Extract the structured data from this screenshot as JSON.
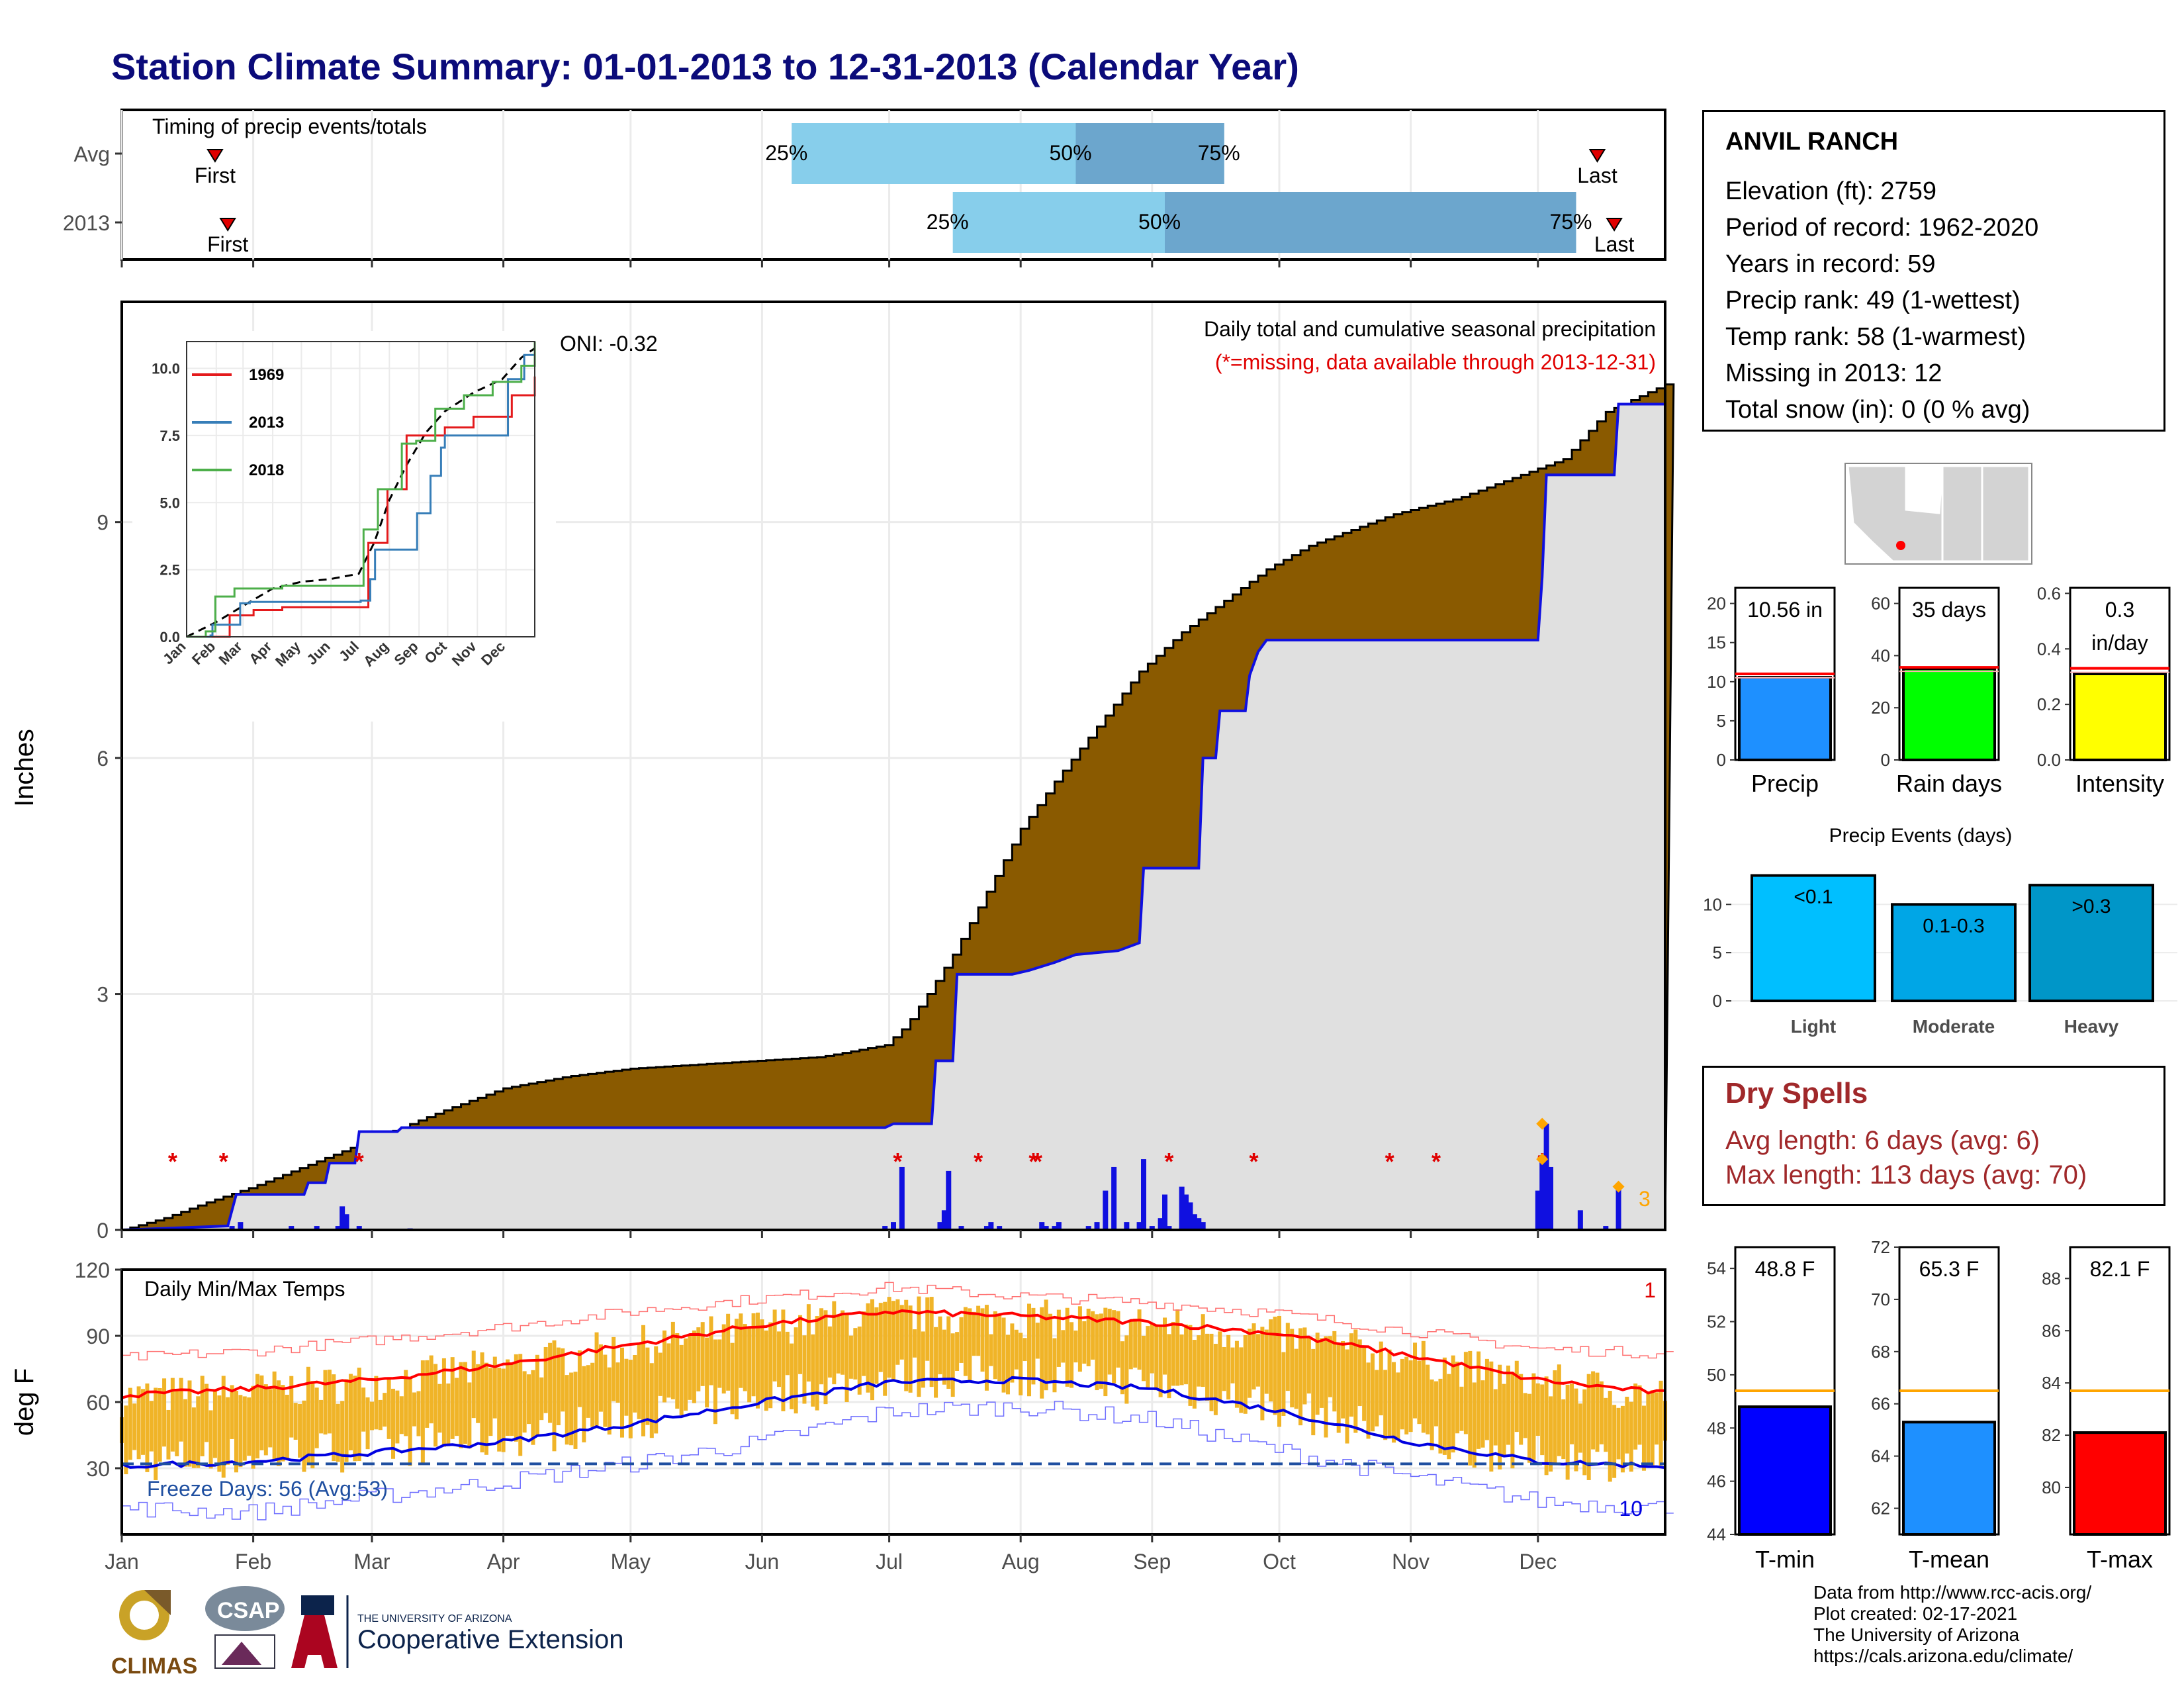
{
  "title": "Station Climate Summary: 01-01-2013 to 12-31-2013 (Calendar Year)",
  "station": {
    "name": "ANVIL RANCH",
    "lines": [
      "Elevation (ft): 2759",
      "Period of record: 1962-2020",
      "Years in record: 59",
      "Precip rank: 49 (1-wettest)",
      "Temp rank: 58 (1-warmest)",
      "Missing in 2013: 12",
      "Total snow (in): 0 (0 % avg)"
    ]
  },
  "dry_spells": {
    "header": "Dry Spells",
    "avg": "Avg length: 6 days (avg: 6)",
    "max": "Max length: 113 days (avg: 70)"
  },
  "credits": [
    "Data from http://www.rcc-acis.org/",
    "Plot created: 02-17-2021",
    "The University of Arizona",
    "https://cals.arizona.edu/climate/"
  ],
  "logos": {
    "climas": "CLIMAS",
    "csap": "CSAP",
    "ua_small": "THE UNIVERSITY OF ARIZONA",
    "ua_big": "Cooperative Extension"
  },
  "colors": {
    "title": "#0b0b7a",
    "cum_precip_fill": "#8a5a00",
    "cum_avg_fill": "#e0e0e0",
    "blue": "#1010e0",
    "timing_light": "#87ceeb",
    "timing_dark": "#6ca6cd",
    "temp_bar": "#f0b428",
    "dry_spell": "#a0282a"
  },
  "chart_data": [
    {
      "id": "timing",
      "type": "bar",
      "title": "Timing of precip events/totals",
      "rows": [
        {
          "label": "Avg",
          "first_doy": 22,
          "last_doy": 348,
          "p25_doy": 158,
          "p50_doy": 225,
          "p75_doy": 260,
          "p25_label": "25%",
          "p50_label": "50%",
          "p75_label": "75%",
          "first_label": "First",
          "last_label": "Last"
        },
        {
          "label": "2013",
          "first_doy": 25,
          "last_doy": 352,
          "p25_doy": 196,
          "p50_doy": 246,
          "p75_doy": 343,
          "p25_label": "25%",
          "p50_label": "50%",
          "p75_label": "75%",
          "first_label": "First",
          "last_label": "Last"
        }
      ]
    },
    {
      "id": "precip",
      "type": "area",
      "title": "Daily total and cumulative seasonal precipitation",
      "subtitle": "(*=missing, data available through 2013-12-31)",
      "ylabel": "Inches",
      "ylim": [
        0,
        11.8
      ],
      "yticks": [
        0,
        3,
        6,
        9
      ],
      "oni": "ONI: -0.32",
      "avg_cumulative": [
        [
          0,
          0
        ],
        [
          10,
          0.15
        ],
        [
          20,
          0.35
        ],
        [
          31,
          0.55
        ],
        [
          45,
          0.85
        ],
        [
          59,
          1.15
        ],
        [
          75,
          1.5
        ],
        [
          90,
          1.8
        ],
        [
          105,
          1.95
        ],
        [
          120,
          2.05
        ],
        [
          135,
          2.1
        ],
        [
          150,
          2.15
        ],
        [
          165,
          2.2
        ],
        [
          180,
          2.35
        ],
        [
          185,
          2.6
        ],
        [
          190,
          3.0
        ],
        [
          196,
          3.5
        ],
        [
          203,
          4.2
        ],
        [
          212,
          5.1
        ],
        [
          220,
          5.7
        ],
        [
          230,
          6.4
        ],
        [
          240,
          7.1
        ],
        [
          250,
          7.6
        ],
        [
          260,
          8.0
        ],
        [
          270,
          8.4
        ],
        [
          280,
          8.7
        ],
        [
          290,
          8.9
        ],
        [
          300,
          9.1
        ],
        [
          315,
          9.3
        ],
        [
          330,
          9.6
        ],
        [
          340,
          9.8
        ],
        [
          350,
          10.4
        ],
        [
          358,
          10.6
        ],
        [
          364,
          10.75
        ]
      ],
      "obs_cumulative": [
        [
          0,
          0
        ],
        [
          25,
          0.05
        ],
        [
          27,
          0.45
        ],
        [
          43,
          0.45
        ],
        [
          44,
          0.6
        ],
        [
          48,
          0.6
        ],
        [
          49,
          0.85
        ],
        [
          55,
          0.85
        ],
        [
          56,
          1.25
        ],
        [
          65,
          1.25
        ],
        [
          66,
          1.3
        ],
        [
          180,
          1.3
        ],
        [
          182,
          1.35
        ],
        [
          191,
          1.35
        ],
        [
          192,
          2.15
        ],
        [
          196,
          2.15
        ],
        [
          197,
          3.25
        ],
        [
          210,
          3.25
        ],
        [
          214,
          3.3
        ],
        [
          220,
          3.4
        ],
        [
          225,
          3.5
        ],
        [
          235,
          3.55
        ],
        [
          240,
          3.65
        ],
        [
          241,
          4.6
        ],
        [
          254,
          4.6
        ],
        [
          255,
          6.0
        ],
        [
          258,
          6.0
        ],
        [
          259,
          6.6
        ],
        [
          265,
          6.6
        ],
        [
          266,
          7.05
        ],
        [
          268,
          7.35
        ],
        [
          270,
          7.5
        ],
        [
          334,
          7.5
        ],
        [
          335,
          8.3
        ],
        [
          336,
          9.6
        ],
        [
          352,
          9.6
        ],
        [
          353,
          10.5
        ],
        [
          364,
          10.5
        ]
      ],
      "daily_bars": [
        [
          26,
          0.05
        ],
        [
          28,
          0.1
        ],
        [
          40,
          0.05
        ],
        [
          46,
          0.05
        ],
        [
          51,
          0.05
        ],
        [
          52,
          0.3
        ],
        [
          53,
          0.2
        ],
        [
          56,
          0.05
        ],
        [
          68,
          0.02
        ],
        [
          180,
          0.05
        ],
        [
          182,
          0.1
        ],
        [
          184,
          0.8
        ],
        [
          193,
          0.1
        ],
        [
          194,
          0.25
        ],
        [
          195,
          0.75
        ],
        [
          198,
          0.05
        ],
        [
          204,
          0.05
        ],
        [
          205,
          0.1
        ],
        [
          207,
          0.05
        ],
        [
          217,
          0.1
        ],
        [
          218,
          0.05
        ],
        [
          220,
          0.05
        ],
        [
          221,
          0.1
        ],
        [
          228,
          0.05
        ],
        [
          230,
          0.1
        ],
        [
          232,
          0.5
        ],
        [
          234,
          0.8
        ],
        [
          237,
          0.1
        ],
        [
          240,
          0.1
        ],
        [
          241,
          0.9
        ],
        [
          243,
          0.05
        ],
        [
          245,
          0.15
        ],
        [
          246,
          0.45
        ],
        [
          247,
          0.05
        ],
        [
          250,
          0.55
        ],
        [
          251,
          0.45
        ],
        [
          252,
          0.35
        ],
        [
          253,
          0.2
        ],
        [
          254,
          0.15
        ],
        [
          255,
          0.1
        ],
        [
          334,
          0.5
        ],
        [
          335,
          0.95
        ],
        [
          336,
          1.35
        ],
        [
          337,
          0.8
        ],
        [
          344,
          0.25
        ],
        [
          350,
          0.05
        ],
        [
          353,
          0.55
        ]
      ],
      "missing_doy": [
        12,
        24,
        56,
        183,
        202,
        215,
        216,
        247,
        267,
        299,
        310,
        335
      ],
      "extreme_markers": [
        [
          335,
          1.35
        ],
        [
          335,
          0.9
        ],
        [
          353,
          0.55
        ]
      ],
      "extreme_label": "3",
      "inset": {
        "type": "line",
        "xlabels": [
          "Jan",
          "Feb",
          "Mar",
          "Apr",
          "May",
          "Jun",
          "Jul",
          "Aug",
          "Sep",
          "Oct",
          "Nov",
          "Dec"
        ],
        "yticks": [
          "0.0",
          "2.5",
          "5.0",
          "7.5",
          "10.0"
        ],
        "ylim": [
          0,
          11
        ],
        "series": [
          {
            "name": "1969",
            "color": "#e41a1c",
            "values": [
              [
                0,
                0
              ],
              [
                40,
                0
              ],
              [
                45,
                0.8
              ],
              [
                70,
                1.0
              ],
              [
                100,
                1.1
              ],
              [
                140,
                1.1
              ],
              [
                180,
                1.1
              ],
              [
                190,
                3.5
              ],
              [
                210,
                5.5
              ],
              [
                230,
                7.5
              ],
              [
                250,
                7.5
              ],
              [
                270,
                7.8
              ],
              [
                300,
                8.2
              ],
              [
                340,
                9.0
              ],
              [
                364,
                9.7
              ]
            ]
          },
          {
            "name": "2013",
            "color": "#377eb8",
            "values": [
              [
                0,
                0
              ],
              [
                25,
                0.05
              ],
              [
                27,
                0.45
              ],
              [
                56,
                1.25
              ],
              [
                66,
                1.3
              ],
              [
                182,
                1.35
              ],
              [
                192,
                2.15
              ],
              [
                197,
                3.25
              ],
              [
                241,
                4.6
              ],
              [
                255,
                6.0
              ],
              [
                266,
                7.05
              ],
              [
                270,
                7.5
              ],
              [
                334,
                7.5
              ],
              [
                336,
                9.6
              ],
              [
                353,
                10.5
              ],
              [
                364,
                10.5
              ]
            ]
          },
          {
            "name": "2018",
            "color": "#4daf4a",
            "values": [
              [
                0,
                0
              ],
              [
                20,
                0.2
              ],
              [
                30,
                1.5
              ],
              [
                50,
                1.8
              ],
              [
                100,
                1.9
              ],
              [
                170,
                1.9
              ],
              [
                185,
                4.0
              ],
              [
                200,
                5.5
              ],
              [
                225,
                7.2
              ],
              [
                240,
                7.3
              ],
              [
                260,
                8.5
              ],
              [
                290,
                9.0
              ],
              [
                320,
                9.5
              ],
              [
                350,
                10.1
              ],
              [
                364,
                11.0
              ]
            ]
          }
        ],
        "avg": [
          [
            0,
            0
          ],
          [
            31,
            0.55
          ],
          [
            59,
            1.15
          ],
          [
            90,
            1.8
          ],
          [
            120,
            2.05
          ],
          [
            150,
            2.15
          ],
          [
            180,
            2.35
          ],
          [
            196,
            3.5
          ],
          [
            212,
            5.1
          ],
          [
            230,
            6.4
          ],
          [
            250,
            7.6
          ],
          [
            270,
            8.4
          ],
          [
            300,
            9.1
          ],
          [
            330,
            9.6
          ],
          [
            350,
            10.4
          ],
          [
            364,
            10.75
          ]
        ]
      }
    },
    {
      "id": "temps",
      "type": "bar",
      "title": "Daily Min/Max Temps",
      "ylabel": "deg F",
      "ylim": [
        0,
        120
      ],
      "yticks": [
        30,
        60,
        90,
        120
      ],
      "freeze_label": "Freeze Days: 56 (Avg:53)",
      "freeze_line": 32,
      "record_high_count": "1",
      "record_low_count": "10",
      "normal_max": [
        [
          0,
          63
        ],
        [
          30,
          66
        ],
        [
          59,
          70
        ],
        [
          90,
          77
        ],
        [
          120,
          86
        ],
        [
          151,
          95
        ],
        [
          181,
          101
        ],
        [
          212,
          99
        ],
        [
          243,
          96
        ],
        [
          273,
          91
        ],
        [
          304,
          81
        ],
        [
          334,
          70
        ],
        [
          364,
          64
        ]
      ],
      "normal_min": [
        [
          0,
          31
        ],
        [
          30,
          33
        ],
        [
          59,
          37
        ],
        [
          90,
          42
        ],
        [
          120,
          50
        ],
        [
          151,
          60
        ],
        [
          181,
          69
        ],
        [
          212,
          70
        ],
        [
          243,
          66
        ],
        [
          273,
          56
        ],
        [
          304,
          42
        ],
        [
          334,
          33
        ],
        [
          364,
          31
        ]
      ],
      "record_max": [
        [
          0,
          80
        ],
        [
          30,
          83
        ],
        [
          59,
          88
        ],
        [
          90,
          94
        ],
        [
          120,
          101
        ],
        [
          151,
          107
        ],
        [
          181,
          112
        ],
        [
          212,
          108
        ],
        [
          243,
          105
        ],
        [
          273,
          100
        ],
        [
          304,
          92
        ],
        [
          334,
          84
        ],
        [
          364,
          82
        ]
      ],
      "record_min": [
        [
          0,
          12
        ],
        [
          30,
          10
        ],
        [
          59,
          17
        ],
        [
          90,
          24
        ],
        [
          120,
          32
        ],
        [
          151,
          42
        ],
        [
          181,
          56
        ],
        [
          212,
          58
        ],
        [
          243,
          52
        ],
        [
          273,
          38
        ],
        [
          304,
          26
        ],
        [
          334,
          15
        ],
        [
          364,
          12
        ]
      ],
      "months": [
        "Jan",
        "Feb",
        "Mar",
        "Apr",
        "May",
        "Jun",
        "Jul",
        "Aug",
        "Sep",
        "Oct",
        "Nov",
        "Dec"
      ]
    },
    {
      "id": "precip_bars",
      "type": "bar",
      "panels": [
        {
          "label": "Precip",
          "value": 10.56,
          "avg": 11.0,
          "ylim": [
            0,
            22
          ],
          "yticks": [
            0,
            5,
            10,
            15,
            20
          ],
          "text": "10.56 in",
          "color": "#1e90ff"
        },
        {
          "label": "Rain days",
          "value": 35,
          "avg": 35.5,
          "ylim": [
            0,
            66
          ],
          "yticks": [
            0,
            20,
            40,
            60
          ],
          "text": "35 days",
          "color": "#00ff00"
        },
        {
          "label": "Intensity",
          "value": 0.31,
          "avg": 0.33,
          "ylim": [
            0,
            0.62
          ],
          "yticks": [
            "0.0",
            "0.2",
            "0.4",
            "0.6"
          ],
          "text": "0.3",
          "text2": "in/day",
          "color": "#ffff00"
        }
      ]
    },
    {
      "id": "precip_events",
      "type": "bar",
      "title": "Precip Events (days)",
      "categories": [
        "Light",
        "Moderate",
        "Heavy"
      ],
      "cat_text": [
        "<0.1",
        "0.1-0.3",
        ">0.3"
      ],
      "values": [
        13,
        10,
        12
      ],
      "colors": [
        "#00bfff",
        "#00a6e6",
        "#0096c8"
      ],
      "ylim": [
        0,
        14
      ],
      "yticks": [
        0,
        5,
        10
      ]
    },
    {
      "id": "temp_bars",
      "type": "bar",
      "panels": [
        {
          "label": "T-min",
          "value": 48.8,
          "avg": 49.4,
          "ylim": [
            44,
            54.8
          ],
          "yticks": [
            44,
            46,
            48,
            50,
            52,
            54
          ],
          "text": "48.8 F",
          "color": "#0000ff"
        },
        {
          "label": "T-mean",
          "value": 65.3,
          "avg": 66.5,
          "ylim": [
            61,
            72
          ],
          "yticks": [
            62,
            64,
            66,
            68,
            70,
            72
          ],
          "text": "65.3 F",
          "color": "#1e90ff"
        },
        {
          "label": "T-max",
          "value": 82.1,
          "avg": 83.7,
          "ylim": [
            78.2,
            89.2
          ],
          "yticks": [
            80,
            82,
            84,
            86,
            88
          ],
          "text": "82.1 F",
          "color": "#ff0000"
        }
      ]
    }
  ]
}
